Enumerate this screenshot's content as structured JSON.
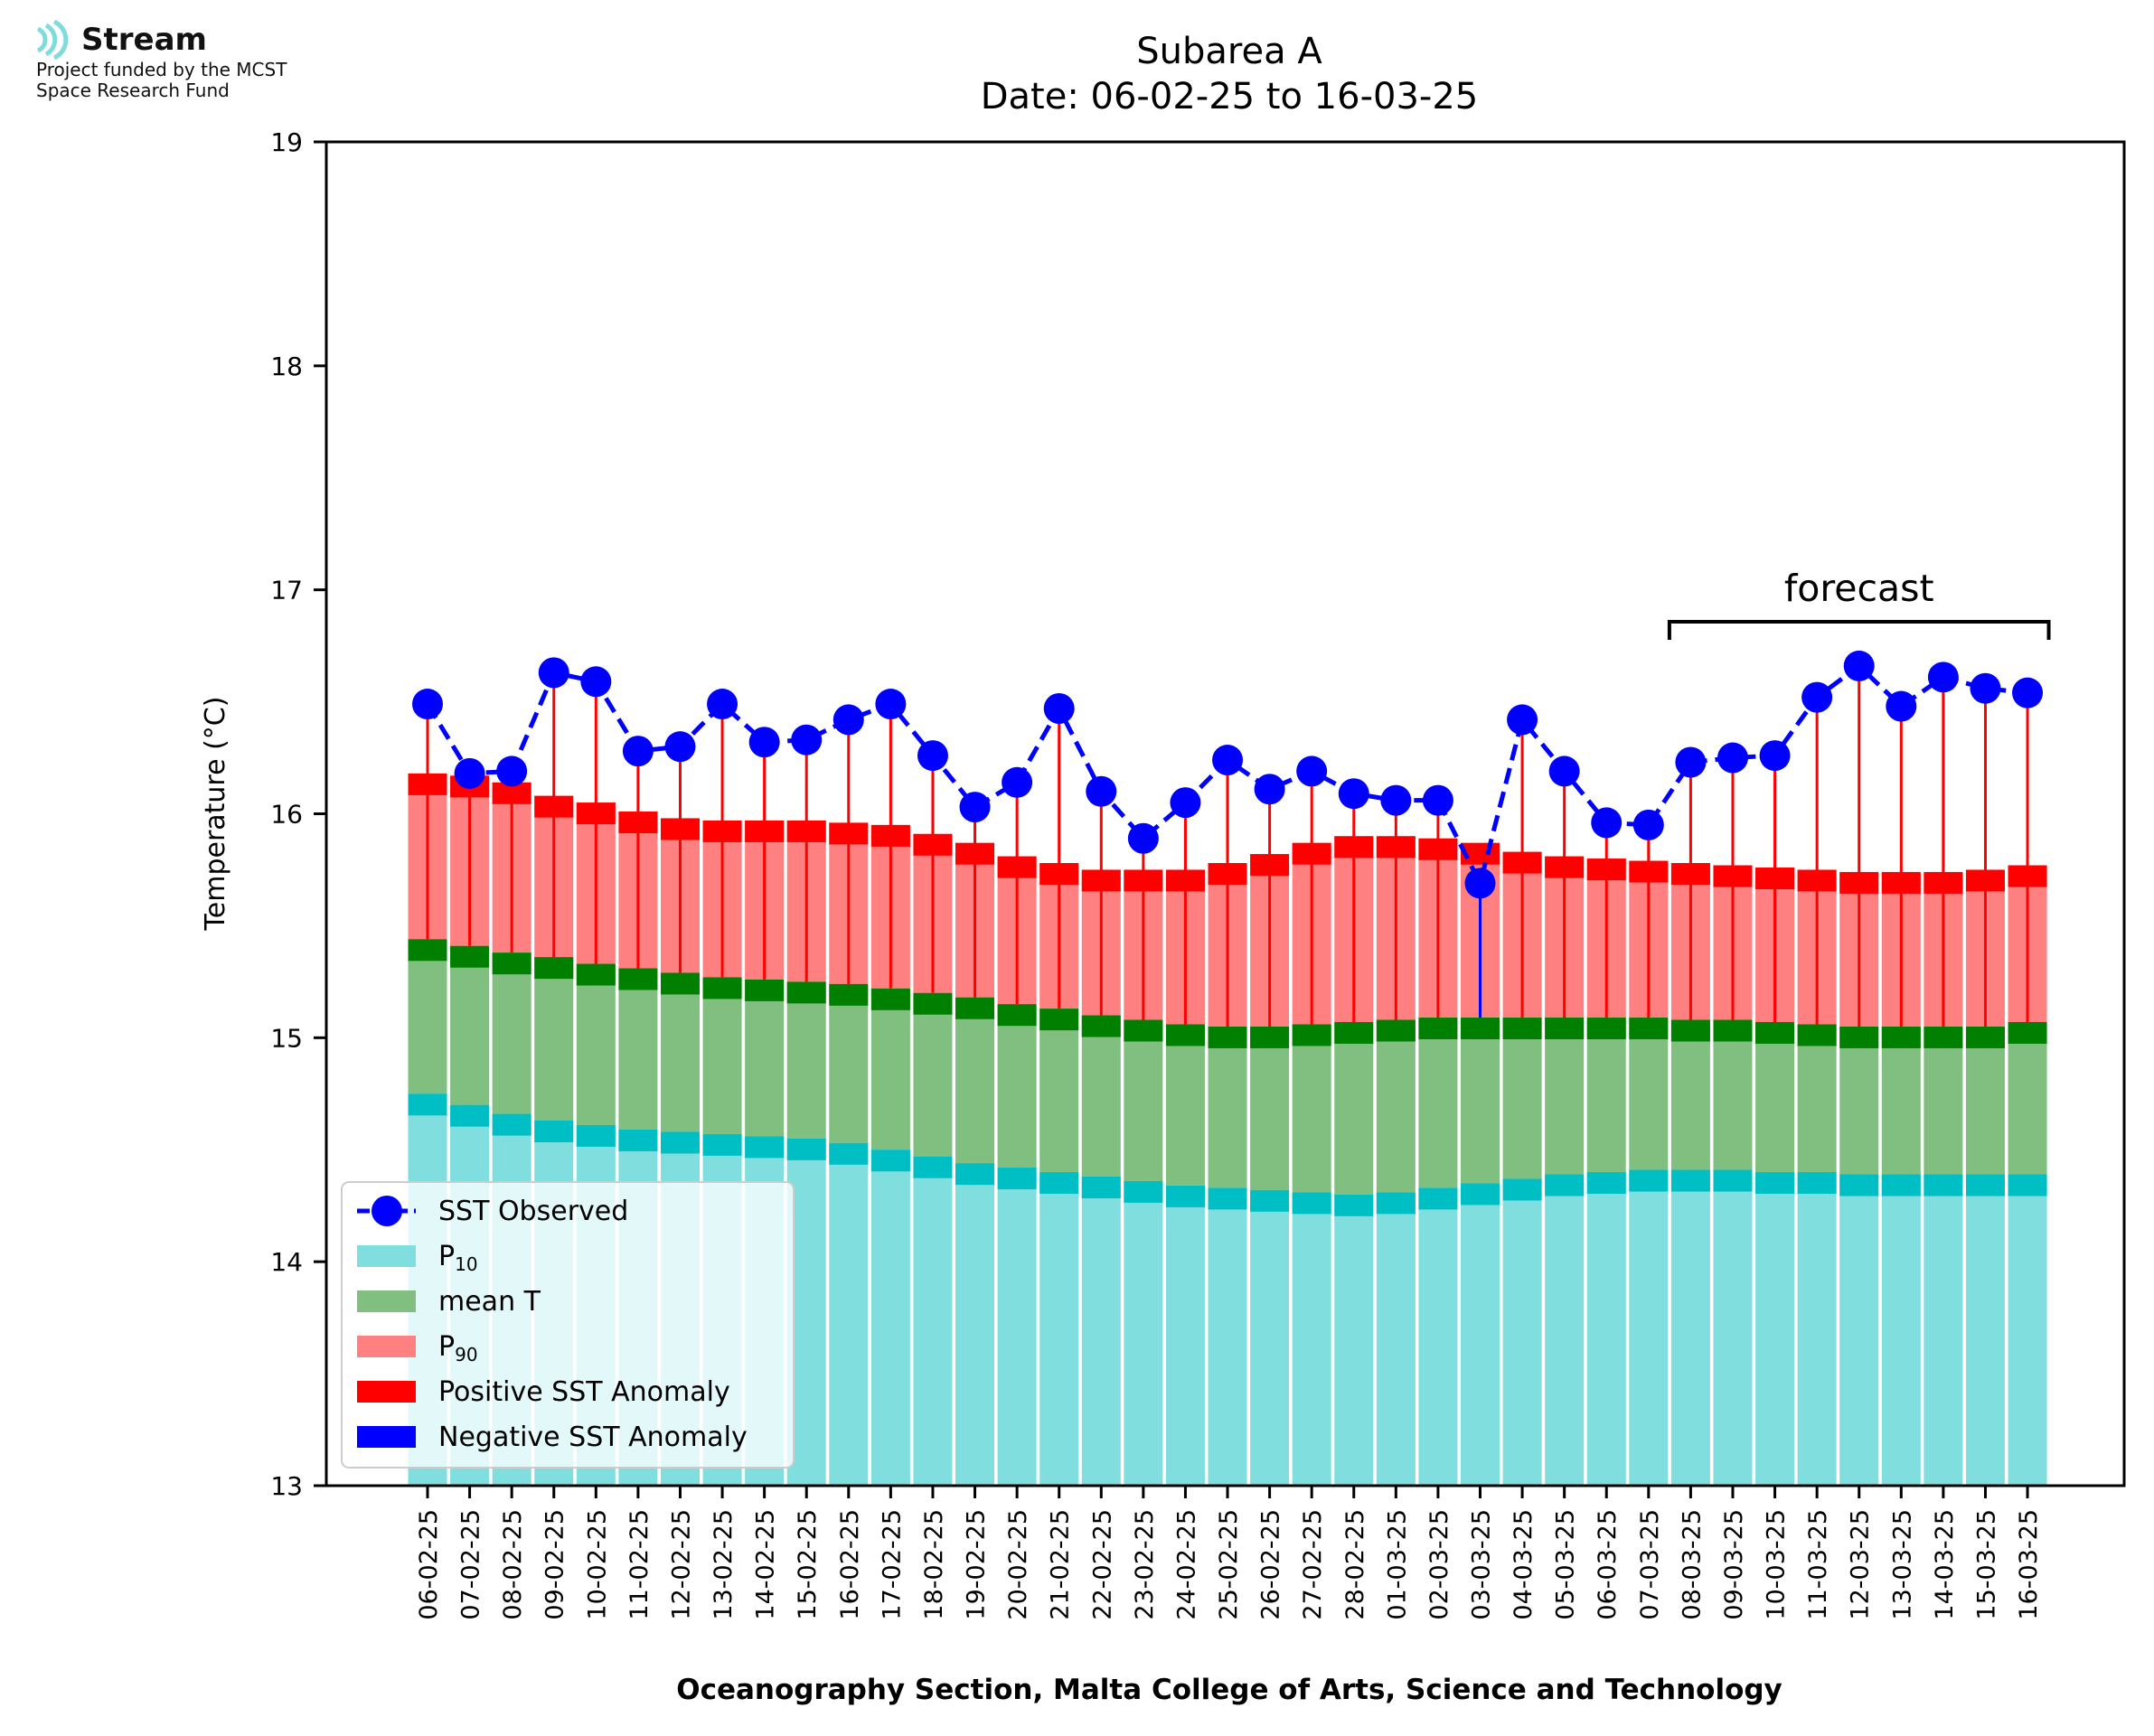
{
  "logo": {
    "name": "Stream",
    "subtitle_lines": [
      "Project funded by the MCST",
      "Space Research Fund"
    ]
  },
  "colors": {
    "p10": "#80DEDE",
    "p10_edge": "#00BFC4",
    "mean": "#80BF80",
    "mean_edge": "#007F00",
    "p90": "#FF8080",
    "p90_edge": "#FF0000",
    "observed": "#0000FF",
    "positive_anomaly": "#FF0000",
    "negative_anomaly": "#0000FF"
  },
  "chart_data": {
    "type": "bar",
    "title_lines": [
      "Subarea A",
      "Date: 06-02-25 to 16-03-25"
    ],
    "xlabel": "Oceanography Section, Malta College of Arts, Science and Technology",
    "ylabel": "Temperature (°C)",
    "ylim": [
      13,
      19
    ],
    "yticks": [
      13,
      14,
      15,
      16,
      17,
      18,
      19
    ],
    "grid": false,
    "legend_position": "lower-left",
    "annotation": {
      "text": "forecast",
      "from_category": "08-03-25",
      "to_category": "16-03-25"
    },
    "categories": [
      "06-02-25",
      "07-02-25",
      "08-02-25",
      "09-02-25",
      "10-02-25",
      "11-02-25",
      "12-02-25",
      "13-02-25",
      "14-02-25",
      "15-02-25",
      "16-02-25",
      "17-02-25",
      "18-02-25",
      "19-02-25",
      "20-02-25",
      "21-02-25",
      "22-02-25",
      "23-02-25",
      "24-02-25",
      "25-02-25",
      "26-02-25",
      "27-02-25",
      "28-02-25",
      "01-03-25",
      "02-03-25",
      "03-03-25",
      "04-03-25",
      "05-03-25",
      "06-03-25",
      "07-03-25",
      "08-03-25",
      "09-03-25",
      "10-03-25",
      "11-03-25",
      "12-03-25",
      "13-03-25",
      "14-03-25",
      "15-03-25",
      "16-03-25"
    ],
    "series": [
      {
        "name": "SST Observed",
        "kind": "line",
        "values": [
          16.49,
          16.18,
          16.19,
          16.63,
          16.59,
          16.28,
          16.3,
          16.49,
          16.32,
          16.33,
          16.42,
          16.49,
          16.26,
          16.03,
          16.14,
          16.47,
          16.1,
          15.89,
          16.05,
          16.24,
          16.11,
          16.19,
          16.09,
          16.06,
          16.06,
          15.69,
          16.42,
          16.19,
          15.96,
          15.95,
          16.23,
          16.25,
          16.26,
          16.52,
          16.66,
          16.48,
          16.61,
          16.56,
          16.54
        ]
      },
      {
        "name": "P10",
        "kind": "bar",
        "values": [
          14.75,
          14.7,
          14.66,
          14.63,
          14.61,
          14.59,
          14.58,
          14.57,
          14.56,
          14.55,
          14.53,
          14.5,
          14.47,
          14.44,
          14.42,
          14.4,
          14.38,
          14.36,
          14.34,
          14.33,
          14.32,
          14.31,
          14.3,
          14.31,
          14.33,
          14.35,
          14.37,
          14.39,
          14.4,
          14.41,
          14.41,
          14.41,
          14.4,
          14.4,
          14.39,
          14.39,
          14.39,
          14.39,
          14.39
        ]
      },
      {
        "name": "mean T",
        "kind": "bar",
        "values": [
          15.44,
          15.41,
          15.38,
          15.36,
          15.33,
          15.31,
          15.29,
          15.27,
          15.26,
          15.25,
          15.24,
          15.22,
          15.2,
          15.18,
          15.15,
          15.13,
          15.1,
          15.08,
          15.06,
          15.05,
          15.05,
          15.06,
          15.07,
          15.08,
          15.09,
          15.09,
          15.09,
          15.09,
          15.09,
          15.09,
          15.08,
          15.08,
          15.07,
          15.06,
          15.05,
          15.05,
          15.05,
          15.05,
          15.07
        ]
      },
      {
        "name": "P90",
        "kind": "bar",
        "values": [
          16.18,
          16.17,
          16.14,
          16.08,
          16.05,
          16.01,
          15.98,
          15.97,
          15.97,
          15.97,
          15.96,
          15.95,
          15.91,
          15.87,
          15.81,
          15.78,
          15.75,
          15.75,
          15.75,
          15.78,
          15.82,
          15.87,
          15.9,
          15.9,
          15.89,
          15.87,
          15.83,
          15.81,
          15.8,
          15.79,
          15.78,
          15.77,
          15.76,
          15.75,
          15.74,
          15.74,
          15.74,
          15.75,
          15.77
        ]
      }
    ],
    "legend": {
      "entries": [
        {
          "label": "SST Observed",
          "kind": "line-marker",
          "color": "#0000FF"
        },
        {
          "label": "P",
          "subscript": "10",
          "kind": "patch",
          "color": "#80DEDE"
        },
        {
          "label": "mean T",
          "kind": "patch",
          "color": "#80BF80"
        },
        {
          "label": "P",
          "subscript": "90",
          "kind": "patch",
          "color": "#FF8080"
        },
        {
          "label": "Positive SST Anomaly",
          "kind": "patch",
          "color": "#FF0000"
        },
        {
          "label": "Negative SST Anomaly",
          "kind": "patch",
          "color": "#0000FF"
        }
      ]
    }
  }
}
